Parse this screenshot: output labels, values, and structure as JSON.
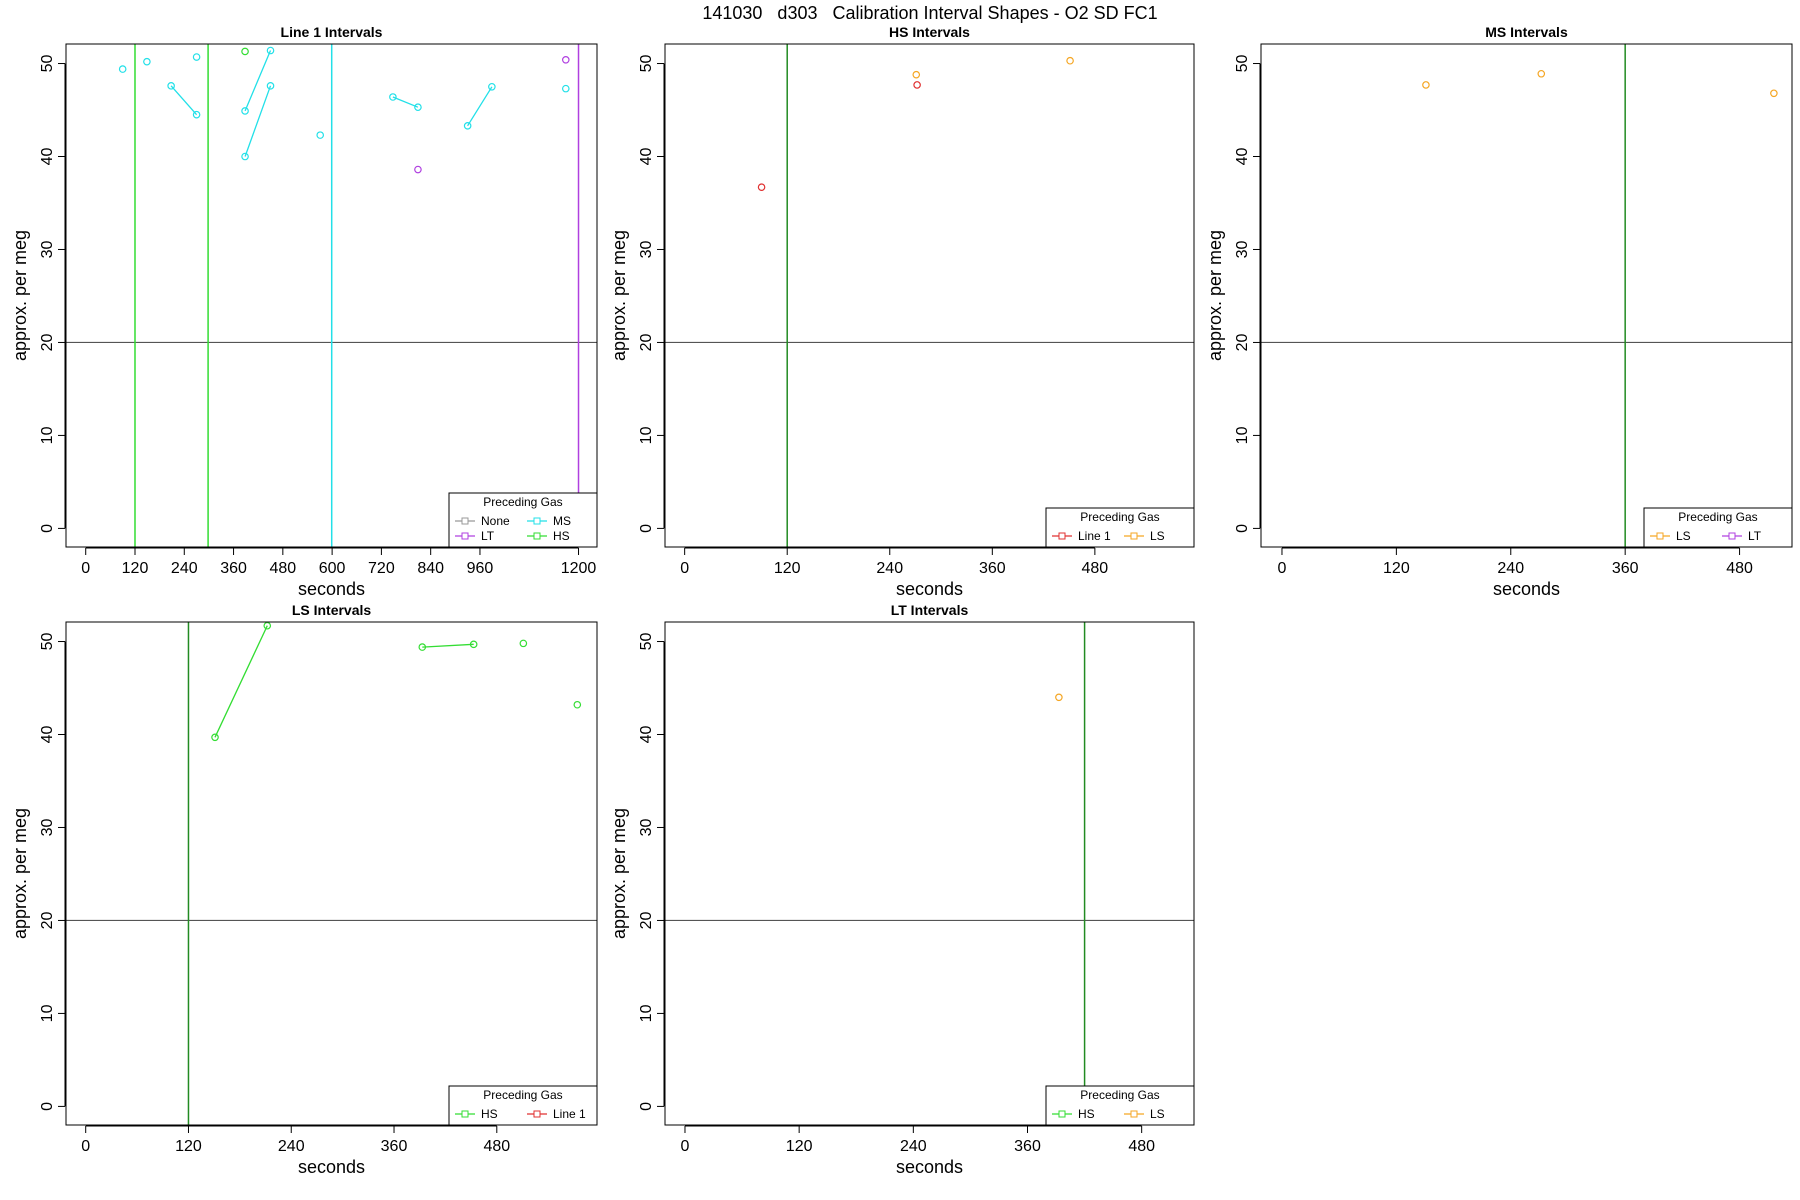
{
  "title": "141030   d303   Calibration Interval Shapes - O2 SD FC1",
  "chart_data": [
    {
      "type": "line",
      "title": "Line 1 Intervals",
      "x_label": "seconds",
      "y_label": "approx. per meg",
      "xlim": [
        -48,
        1245
      ],
      "ylim": [
        -2,
        52.1
      ],
      "xticks": [
        0,
        120,
        240,
        360,
        480,
        600,
        720,
        840,
        960,
        1200
      ],
      "yticks": [
        0,
        10,
        20,
        30,
        40,
        50
      ],
      "hline": 20,
      "vlines": [
        {
          "x": 120,
          "color": "#33dd33"
        },
        {
          "x": 298,
          "color": "#33dd33"
        },
        {
          "x": 599,
          "color": "#22e0e8"
        },
        {
          "x": 1200,
          "color": "#b040e0"
        }
      ],
      "legend_title": "Preceding Gas",
      "legend": "bottomright",
      "series": [
        {
          "name": "None",
          "color": "#999999",
          "x": [],
          "values": []
        },
        {
          "name": "MS",
          "color": "#22e0e8",
          "x": [
            90,
            null,
            149,
            null,
            208,
            270,
            null,
            270,
            null,
            388,
            450,
            null,
            388,
            450,
            null,
            571,
            null,
            748,
            809,
            null,
            930,
            989,
            null,
            1169
          ],
          "values": [
            49.4,
            null,
            50.2,
            null,
            47.6,
            44.5,
            null,
            50.7,
            null,
            40,
            47.6,
            null,
            44.9,
            51.4,
            null,
            42.3,
            null,
            46.4,
            45.3,
            null,
            43.3,
            47.5,
            null,
            47.3
          ]
        },
        {
          "name": "LT",
          "color": "#b040e0",
          "x": [
            809,
            null,
            1169
          ],
          "values": [
            38.6,
            null,
            50.4
          ]
        },
        {
          "name": "HS",
          "color": "#33dd33",
          "x": [
            388
          ],
          "values": [
            51.3
          ]
        }
      ]
    },
    {
      "type": "line",
      "title": "HS Intervals",
      "x_label": "seconds",
      "y_label": "approx. per meg",
      "xlim": [
        -23,
        596
      ],
      "ylim": [
        -2,
        52.1
      ],
      "xticks": [
        0,
        120,
        240,
        360,
        480
      ],
      "yticks": [
        0,
        10,
        20,
        30,
        40,
        50
      ],
      "hline": 20,
      "vlines": [
        {
          "x": 120,
          "color": "#228b22"
        }
      ],
      "legend_title": "Preceding Gas",
      "legend": "bottomright",
      "series": [
        {
          "name": "Line 1",
          "color": "#e03030",
          "x": [
            90,
            null,
            272
          ],
          "values": [
            36.7,
            null,
            47.7
          ]
        },
        {
          "name": "LS",
          "color": "#f5a623",
          "x": [
            271,
            null,
            451
          ],
          "values": [
            48.8,
            null,
            50.3
          ]
        }
      ]
    },
    {
      "type": "line",
      "title": "MS Intervals",
      "x_label": "seconds",
      "y_label": "approx. per meg",
      "xlim": [
        -22,
        535
      ],
      "ylim": [
        -2,
        52.1
      ],
      "xticks": [
        0,
        120,
        240,
        360,
        480
      ],
      "yticks": [
        0,
        10,
        20,
        30,
        40,
        50
      ],
      "hline": 20,
      "vlines": [
        {
          "x": 360,
          "color": "#228b22"
        }
      ],
      "legend_title": "Preceding Gas",
      "legend": "bottomright",
      "series": [
        {
          "name": "LS",
          "color": "#f5a623",
          "x": [
            151,
            null,
            272,
            null,
            516
          ],
          "values": [
            47.7,
            null,
            48.9,
            null,
            46.8
          ]
        },
        {
          "name": "LT",
          "color": "#b040e0",
          "x": [],
          "values": []
        }
      ]
    },
    {
      "type": "line",
      "title": "LS Intervals",
      "x_label": "seconds",
      "y_label": "approx. per meg",
      "xlim": [
        -23,
        597
      ],
      "ylim": [
        -2,
        52.1
      ],
      "xticks": [
        0,
        120,
        240,
        360,
        480
      ],
      "yticks": [
        0,
        10,
        20,
        30,
        40,
        50
      ],
      "hline": 20,
      "vlines": [
        {
          "x": 120,
          "color": "#228b22"
        }
      ],
      "legend_title": "Preceding Gas",
      "legend": "bottomright",
      "series": [
        {
          "name": "HS",
          "color": "#33dd33",
          "x": [
            151,
            212,
            null,
            393,
            453,
            null,
            511,
            null,
            574
          ],
          "values": [
            39.7,
            51.7,
            null,
            49.4,
            49.7,
            null,
            49.8,
            null,
            43.2
          ]
        },
        {
          "name": "Line 1",
          "color": "#e03030",
          "x": [],
          "values": []
        }
      ]
    },
    {
      "type": "line",
      "title": "LT Intervals",
      "x_label": "seconds",
      "y_label": "approx. per meg",
      "xlim": [
        -21,
        535
      ],
      "ylim": [
        -2,
        52.1
      ],
      "xticks": [
        0,
        120,
        240,
        360,
        480
      ],
      "yticks": [
        0,
        10,
        20,
        30,
        40,
        50
      ],
      "hline": 20,
      "vlines": [
        {
          "x": 420,
          "color": "#228b22"
        }
      ],
      "legend_title": "Preceding Gas",
      "legend": "bottomright",
      "series": [
        {
          "name": "HS",
          "color": "#33dd33",
          "x": [],
          "values": []
        },
        {
          "name": "LS",
          "color": "#f5a623",
          "x": [
            393
          ],
          "values": [
            44
          ]
        }
      ]
    }
  ]
}
